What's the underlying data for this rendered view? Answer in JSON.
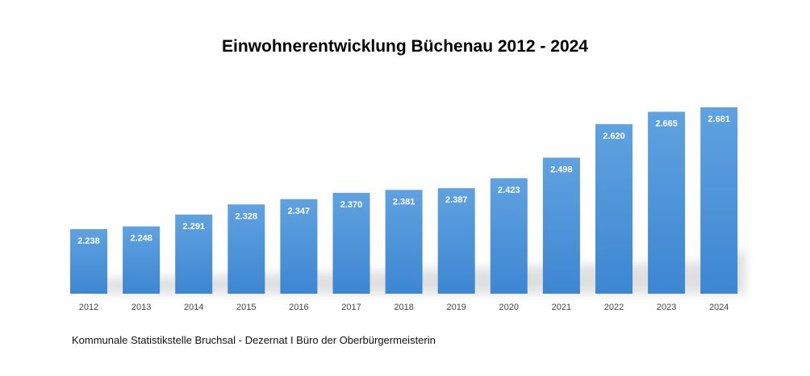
{
  "chart_data": {
    "type": "bar",
    "title": "Einwohnerentwicklung Büchenau 2012 - 2024",
    "categories": [
      "2012",
      "2013",
      "2014",
      "2015",
      "2016",
      "2017",
      "2018",
      "2019",
      "2020",
      "2021",
      "2022",
      "2023",
      "2024"
    ],
    "values": [
      2238,
      2248,
      2291,
      2328,
      2347,
      2370,
      2381,
      2387,
      2423,
      2498,
      2620,
      2665,
      2681
    ],
    "value_labels": [
      "2.238",
      "2.248",
      "2.291",
      "2.328",
      "2.347",
      "2.370",
      "2.381",
      "2.387",
      "2.423",
      "2.498",
      "2.620",
      "2.665",
      "2.681"
    ],
    "xlabel": "",
    "ylabel": "",
    "grid": false,
    "legend": "none",
    "bar_color": "#4a90d9"
  },
  "footer": {
    "source": "Kommunale Statistikstelle Bruchsal - Dezernat I Büro der Oberbürgermeisterin"
  }
}
